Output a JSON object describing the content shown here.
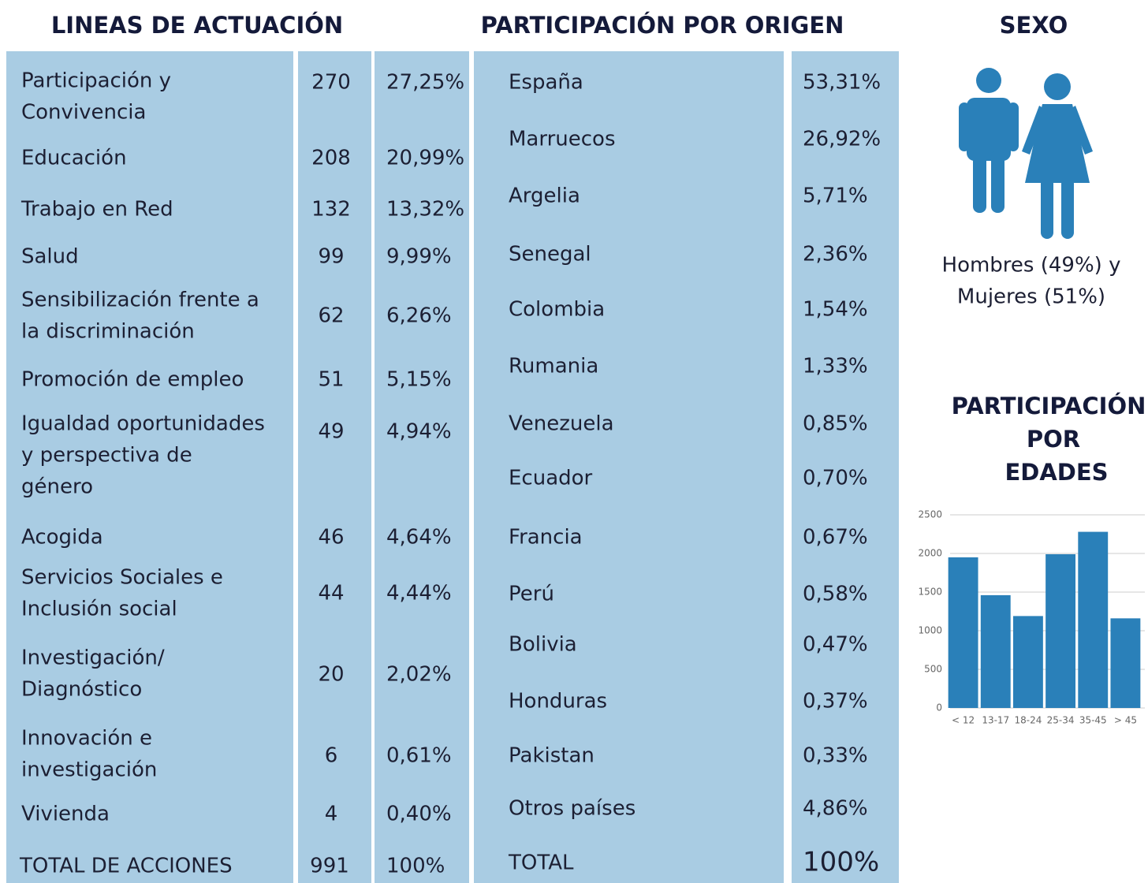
{
  "lineas": {
    "title": "LINEAS DE ACTUACIÓN",
    "rows": [
      {
        "label": [
          "Participación y",
          "Convivencia"
        ],
        "count": "270",
        "percent": "27,25%"
      },
      {
        "label": [
          "Educación"
        ],
        "count": "208",
        "percent": "20,99%"
      },
      {
        "label": [
          "Trabajo en Red"
        ],
        "count": "132",
        "percent": "13,32%"
      },
      {
        "label": [
          "Salud"
        ],
        "count": "99",
        "percent": "9,99%"
      },
      {
        "label": [
          "Sensibilización frente a",
          "la discriminación"
        ],
        "count": "62",
        "percent": "6,26%"
      },
      {
        "label": [
          "Promoción de empleo"
        ],
        "count": "51",
        "percent": "5,15%"
      },
      {
        "label": [
          "Igualdad oportunidades",
          "y perspectiva de",
          "género"
        ],
        "count": "49",
        "percent": "4,94%"
      },
      {
        "label": [
          "Acogida"
        ],
        "count": "46",
        "percent": "4,64%"
      },
      {
        "label": [
          "Servicios Sociales e",
          "Inclusión social"
        ],
        "count": "44",
        "percent": "4,44%"
      },
      {
        "label": [
          "Investigación/",
          "Diagnóstico"
        ],
        "count": "20",
        "percent": "2,02%"
      },
      {
        "label": [
          "Innovación e",
          "investigación"
        ],
        "count": "6",
        "percent": "0,61%"
      },
      {
        "label": [
          "Vivienda"
        ],
        "count": "4",
        "percent": "0,40%"
      }
    ],
    "total": {
      "label": "TOTAL DE ACCIONES",
      "count": "991",
      "percent": "100%"
    }
  },
  "origen": {
    "title": "PARTICIPACIÓN POR ORIGEN",
    "rows": [
      {
        "name": "España",
        "percent": "53,31%"
      },
      {
        "name": "Marruecos",
        "percent": "26,92%"
      },
      {
        "name": "Argelia",
        "percent": "5,71%"
      },
      {
        "name": "Senegal",
        "percent": "2,36%"
      },
      {
        "name": "Colombia",
        "percent": "1,54%"
      },
      {
        "name": "Rumania",
        "percent": "1,33%"
      },
      {
        "name": "Venezuela",
        "percent": "0,85%"
      },
      {
        "name": "Ecuador",
        "percent": "0,70%"
      },
      {
        "name": "Francia",
        "percent": "0,67%"
      },
      {
        "name": "Perú",
        "percent": "0,58%"
      },
      {
        "name": "Bolivia",
        "percent": "0,47%"
      },
      {
        "name": "Honduras",
        "percent": "0,37%"
      },
      {
        "name": "Pakistan",
        "percent": "0,33%"
      },
      {
        "name": "Otros países",
        "percent": "4,86%"
      }
    ],
    "total": {
      "name": "TOTAL",
      "percent": "100%"
    }
  },
  "sexo": {
    "title": "SEXO",
    "text": [
      "Hombres (49%) y",
      "Mujeres (51%)"
    ]
  },
  "chart_data": {
    "type": "bar",
    "title": [
      "PARTICIPACIÓN",
      "POR",
      "EDADES"
    ],
    "categories": [
      "< 12",
      "13-17",
      "18-24",
      "25-34",
      "35-45",
      "> 45"
    ],
    "values": [
      1950,
      1460,
      1190,
      1990,
      2280,
      1160
    ],
    "color": "#2a80b9",
    "ylim": [
      0,
      2500
    ],
    "yticks": [
      0,
      500,
      1000,
      1500,
      2000,
      2500
    ],
    "grid": true
  }
}
